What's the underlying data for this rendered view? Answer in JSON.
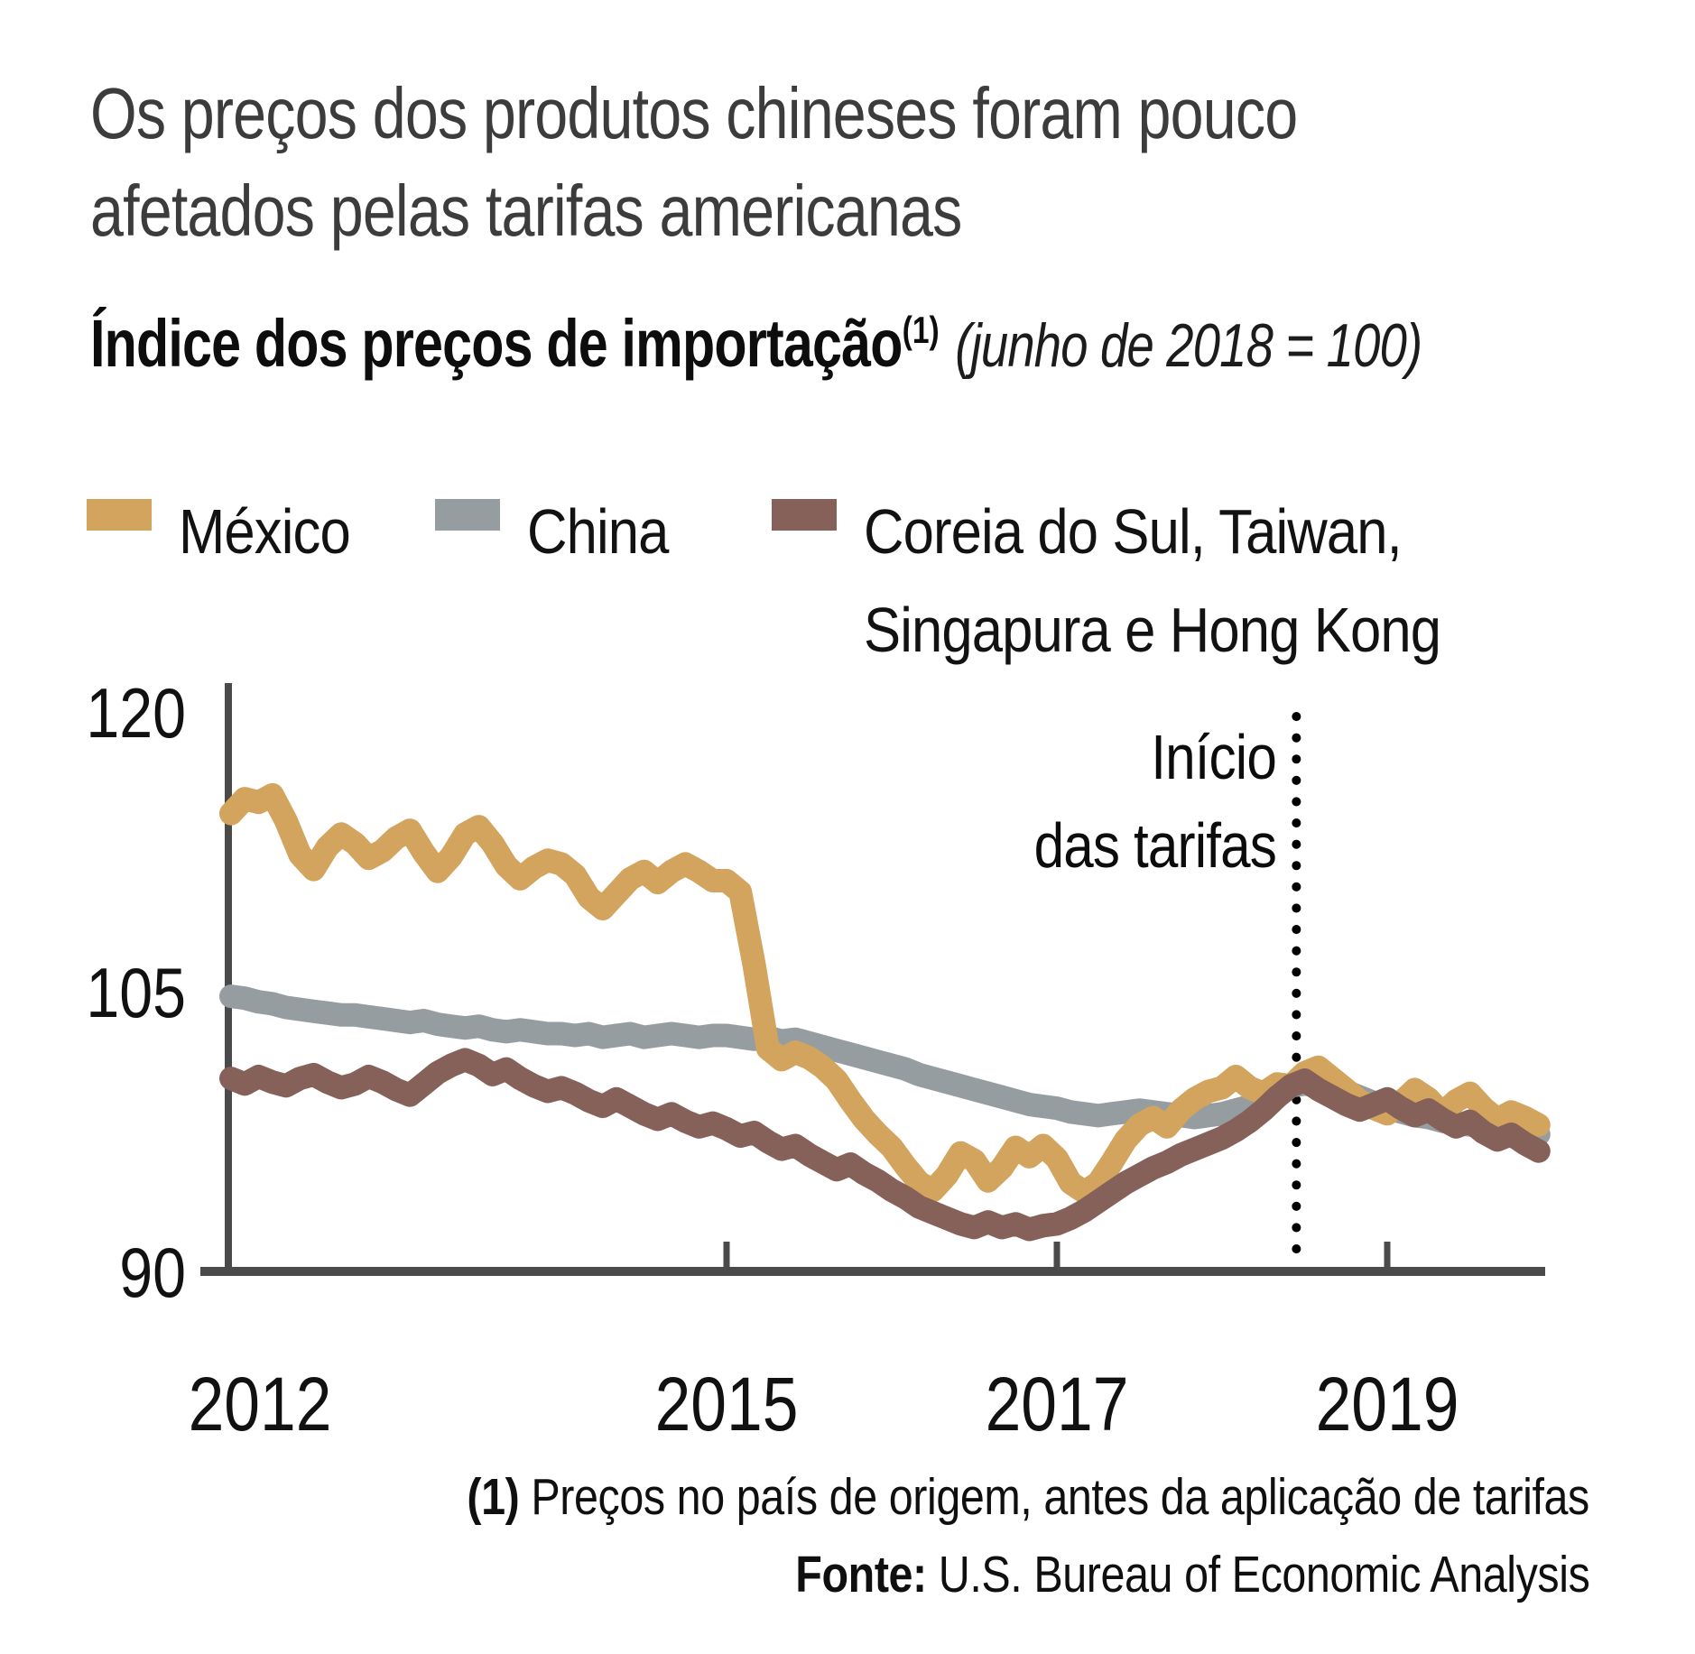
{
  "title": {
    "line1": "Os preços dos produtos chineses foram pouco",
    "line2": "afetados pelas tarifas americanas"
  },
  "subtitle": {
    "bold": "Índice dos preços de importação",
    "sup": "(1)",
    "note": "(junho de 2018 = 100)"
  },
  "legend": {
    "items": [
      {
        "label_line1": "México",
        "label_line2": "",
        "color": "#D2A45E"
      },
      {
        "label_line1": "China",
        "label_line2": "",
        "color": "#969DA0"
      },
      {
        "label_line1": "Coreia do Sul, Taiwan,",
        "label_line2": "Singapura e Hong Kong",
        "color": "#85615A"
      }
    ]
  },
  "annotation": {
    "line1": "Início",
    "line2": "das tarifas"
  },
  "footnote": {
    "marker": "(1)",
    "text": " Preços no país de origem, antes da aplicação de tarifas"
  },
  "source": {
    "label": "Fonte:",
    "text": " U.S. Bureau of Economic Analysis"
  },
  "chart_data": {
    "type": "line",
    "title": "Índice dos preços de importação (junho de 2018 = 100)",
    "x_description": "monthly, Jan 2012 – Dec 2019",
    "x_start_year": 2012,
    "x_step_years": 0.0833333,
    "x_tick_labels": [
      2012,
      2015,
      2017,
      2019
    ],
    "x_tick_marks": [
      2015,
      2017,
      2019
    ],
    "y_axis": {
      "ticks": [
        120,
        105,
        90
      ],
      "ylim": [
        90,
        120
      ]
    },
    "grid": false,
    "legend_position": "top",
    "event": {
      "t": 2018.45,
      "date": "junho/julho de 2018",
      "label": "Início das tarifas",
      "line_color": "#000000"
    },
    "axis_color": "#4A4A4A",
    "series": [
      {
        "name": "México",
        "color": "#D2A45E",
        "values": [
          114.6,
          115.4,
          115.2,
          115.6,
          114.2,
          112.4,
          111.6,
          112.8,
          113.5,
          113.0,
          112.2,
          112.6,
          113.3,
          113.7,
          112.5,
          111.5,
          112.3,
          113.5,
          113.9,
          113.0,
          111.8,
          111.1,
          111.7,
          112.1,
          111.9,
          111.3,
          110.1,
          109.5,
          110.3,
          111.1,
          111.5,
          110.9,
          111.5,
          111.9,
          111.5,
          111.0,
          111.0,
          110.4,
          106.5,
          102.0,
          101.4,
          101.8,
          101.5,
          101.0,
          100.3,
          99.2,
          98.2,
          97.4,
          96.7,
          95.7,
          94.8,
          94.4,
          95.2,
          96.4,
          96.0,
          94.9,
          95.6,
          96.7,
          96.2,
          96.8,
          96.1,
          94.8,
          94.3,
          94.8,
          95.9,
          97.1,
          97.9,
          98.3,
          97.8,
          98.7,
          99.3,
          99.7,
          99.9,
          100.5,
          99.9,
          99.6,
          100.1,
          100.0,
          100.7,
          101.0,
          100.4,
          99.8,
          99.2,
          98.8,
          98.5,
          99.1,
          99.8,
          99.3,
          98.5,
          99.2,
          99.6,
          98.8,
          98.2,
          98.6,
          98.3,
          97.9
        ]
      },
      {
        "name": "China",
        "color": "#969DA0",
        "values": [
          104.8,
          104.7,
          104.5,
          104.4,
          104.2,
          104.1,
          104.0,
          103.9,
          103.8,
          103.8,
          103.7,
          103.6,
          103.5,
          103.4,
          103.5,
          103.3,
          103.2,
          103.1,
          103.2,
          103.0,
          102.9,
          103.0,
          102.9,
          102.8,
          102.8,
          102.7,
          102.8,
          102.6,
          102.7,
          102.8,
          102.6,
          102.7,
          102.8,
          102.7,
          102.6,
          102.7,
          102.7,
          102.6,
          102.5,
          102.6,
          102.4,
          102.5,
          102.3,
          102.1,
          101.9,
          101.7,
          101.5,
          101.3,
          101.1,
          100.9,
          100.6,
          100.4,
          100.2,
          100.0,
          99.8,
          99.6,
          99.4,
          99.2,
          99.0,
          98.9,
          98.8,
          98.6,
          98.5,
          98.4,
          98.5,
          98.6,
          98.7,
          98.6,
          98.5,
          98.4,
          98.3,
          98.4,
          98.5,
          98.7,
          98.9,
          99.2,
          99.6,
          100.0,
          100.1,
          100.0,
          99.9,
          99.7,
          99.4,
          99.1,
          98.8,
          98.6,
          98.4,
          98.3,
          98.1,
          98.0,
          97.9,
          97.8,
          97.6,
          97.5,
          97.5,
          97.4
        ]
      },
      {
        "name": "Coreia do Sul, Taiwan, Singapura e Hong Kong",
        "color": "#85615A",
        "values": [
          100.4,
          100.1,
          100.5,
          100.2,
          100.0,
          100.4,
          100.6,
          100.2,
          99.9,
          100.1,
          100.5,
          100.2,
          99.8,
          99.5,
          100.1,
          100.7,
          101.1,
          101.4,
          101.1,
          100.6,
          100.9,
          100.4,
          100.0,
          99.7,
          99.9,
          99.6,
          99.2,
          98.9,
          99.3,
          98.9,
          98.5,
          98.2,
          98.5,
          98.1,
          97.8,
          98.0,
          97.7,
          97.3,
          97.5,
          97.0,
          96.6,
          96.8,
          96.3,
          95.9,
          95.5,
          95.8,
          95.3,
          94.9,
          94.4,
          94.0,
          93.5,
          93.2,
          92.9,
          92.6,
          92.4,
          92.7,
          92.4,
          92.6,
          92.3,
          92.5,
          92.6,
          92.9,
          93.3,
          93.8,
          94.3,
          94.8,
          95.2,
          95.6,
          95.9,
          96.3,
          96.6,
          96.9,
          97.2,
          97.6,
          98.1,
          98.7,
          99.4,
          100.0,
          100.3,
          99.8,
          99.4,
          99.0,
          98.7,
          99.0,
          99.3,
          98.8,
          98.4,
          98.7,
          98.2,
          97.8,
          98.1,
          97.5,
          97.1,
          97.4,
          96.9,
          96.5
        ]
      }
    ]
  }
}
